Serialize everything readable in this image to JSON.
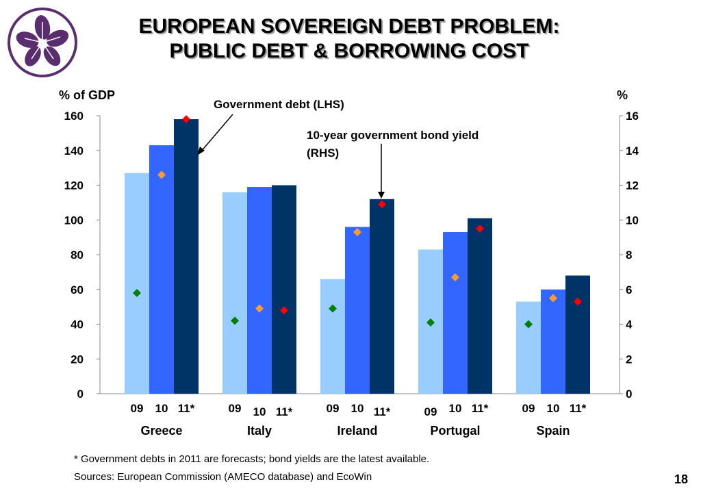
{
  "slide": {
    "title_line1": "EUROPEAN SOVEREIGN DEBT PROBLEM:",
    "title_line2": "PUBLIC DEBT & BORROWING COST",
    "footnote": "* Government debts in 2011 are forecasts; bond yields are the latest available.",
    "sources": "Sources: European Commission (AMECO database) and EcoWin",
    "page_number": "18",
    "logo": "bauhinia-flower-logo"
  },
  "colors": {
    "bar_09": "#99ccff",
    "bar_10": "#3366ff",
    "bar_11": "#003366",
    "marker_09": "#008000",
    "marker_10": "#ff9933",
    "marker_11": "#ff0000",
    "logo": "#5a2d6e"
  },
  "chart_data": {
    "type": "bar",
    "left_axis_label": "% of GDP",
    "right_axis_label": "%",
    "ylim_left": [
      0,
      160
    ],
    "ylim_right": [
      0,
      16
    ],
    "left_ticks": [
      "0",
      "20",
      "40",
      "60",
      "80",
      "100",
      "120",
      "140",
      "160"
    ],
    "right_ticks": [
      "0",
      "2",
      "4",
      "6",
      "8",
      "10",
      "12",
      "14",
      "16"
    ],
    "grid": false,
    "categories": [
      "Greece",
      "Italy",
      "Ireland",
      "Portugal",
      "Spain"
    ],
    "year_labels": [
      "09",
      "10",
      "11*"
    ],
    "series": [
      {
        "name": "Government debt (LHS)",
        "kind": "bar",
        "axis": "left",
        "values": [
          [
            127,
            143,
            158
          ],
          [
            116,
            119,
            120
          ],
          [
            66,
            96,
            112
          ],
          [
            83,
            93,
            101
          ],
          [
            53,
            60,
            68
          ]
        ]
      },
      {
        "name": "10-year government bond yield (RHS)",
        "kind": "marker",
        "axis": "right",
        "values": [
          [
            5.8,
            12.6,
            15.8
          ],
          [
            4.2,
            4.9,
            4.8
          ],
          [
            4.9,
            9.3,
            10.9
          ],
          [
            4.1,
            6.7,
            9.5
          ],
          [
            4.0,
            5.5,
            5.3
          ]
        ]
      }
    ],
    "annotations": {
      "debt": "Government debt (LHS)",
      "yield_line1": "10-year government bond yield",
      "yield_line2": "(RHS)"
    }
  }
}
